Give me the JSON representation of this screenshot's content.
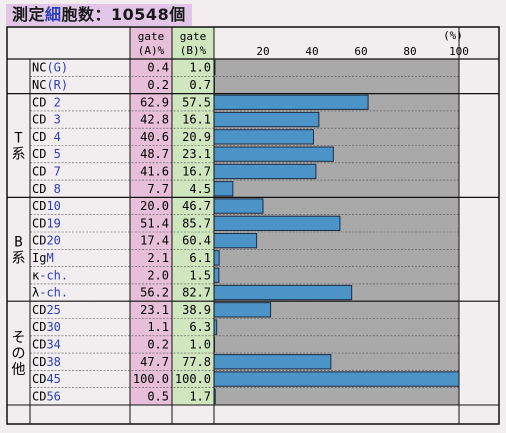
{
  "title": {
    "prefix": "測定",
    "accent": "細",
    "suffix": "胞数：10548個"
  },
  "chart_data": {
    "type": "bar",
    "columns": [
      "gate\n(A)%",
      "gate\n(B)%"
    ],
    "x_ticks": [
      "20",
      "40",
      "60",
      "80",
      "100"
    ],
    "x_unit": "(%)",
    "xlim": [
      0,
      100
    ],
    "groups": [
      {
        "label": "",
        "rows": [
          {
            "name": "NC",
            "suffix": "(G)",
            "a": "0.4",
            "b": "1.0"
          },
          {
            "name": "NC",
            "suffix": "(R)",
            "a": "0.2",
            "b": "0.7"
          }
        ]
      },
      {
        "label": "T系",
        "rows": [
          {
            "name": "CD",
            "suffix": " 2",
            "a": "62.9",
            "b": "57.5"
          },
          {
            "name": "CD",
            "suffix": " 3",
            "a": "42.8",
            "b": "16.1"
          },
          {
            "name": "CD",
            "suffix": " 4",
            "a": "40.6",
            "b": "20.9"
          },
          {
            "name": "CD",
            "suffix": " 5",
            "a": "48.7",
            "b": "23.1"
          },
          {
            "name": "CD",
            "suffix": " 7",
            "a": "41.6",
            "b": "16.7"
          },
          {
            "name": "CD",
            "suffix": " 8",
            "a": "7.7",
            "b": "4.5"
          }
        ]
      },
      {
        "label": "B系",
        "rows": [
          {
            "name": "CD",
            "suffix": "10",
            "a": "20.0",
            "b": "46.7"
          },
          {
            "name": "CD",
            "suffix": "19",
            "a": "51.4",
            "b": "85.7"
          },
          {
            "name": "CD",
            "suffix": "20",
            "a": "17.4",
            "b": "60.4"
          },
          {
            "name": "Ig",
            "suffix": "M",
            "a": "2.1",
            "b": "6.1"
          },
          {
            "name": "κ",
            "suffix": "-ch.",
            "a": "2.0",
            "b": "1.5"
          },
          {
            "name": "λ",
            "suffix": "-ch.",
            "a": "56.2",
            "b": "82.7"
          }
        ]
      },
      {
        "label": "その他",
        "rows": [
          {
            "name": "CD",
            "suffix": "25",
            "a": "23.1",
            "b": "38.9"
          },
          {
            "name": "CD",
            "suffix": "30",
            "a": "1.1",
            "b": "6.3"
          },
          {
            "name": "CD",
            "suffix": "34",
            "a": "0.2",
            "b": "1.0"
          },
          {
            "name": "CD",
            "suffix": "38",
            "a": "47.7",
            "b": "77.8"
          },
          {
            "name": "CD",
            "suffix": "45",
            "a": "100.0",
            "b": "100.0"
          },
          {
            "name": "CD",
            "suffix": "56",
            "a": "0.5",
            "b": "1.7"
          }
        ]
      }
    ],
    "colors": {
      "bar": "#4c93c8",
      "plot_bg": "#a9a9a9",
      "col_a": "#e7bfd9",
      "col_b": "#cfe6be",
      "accent_text": "#2b3fb8"
    }
  }
}
